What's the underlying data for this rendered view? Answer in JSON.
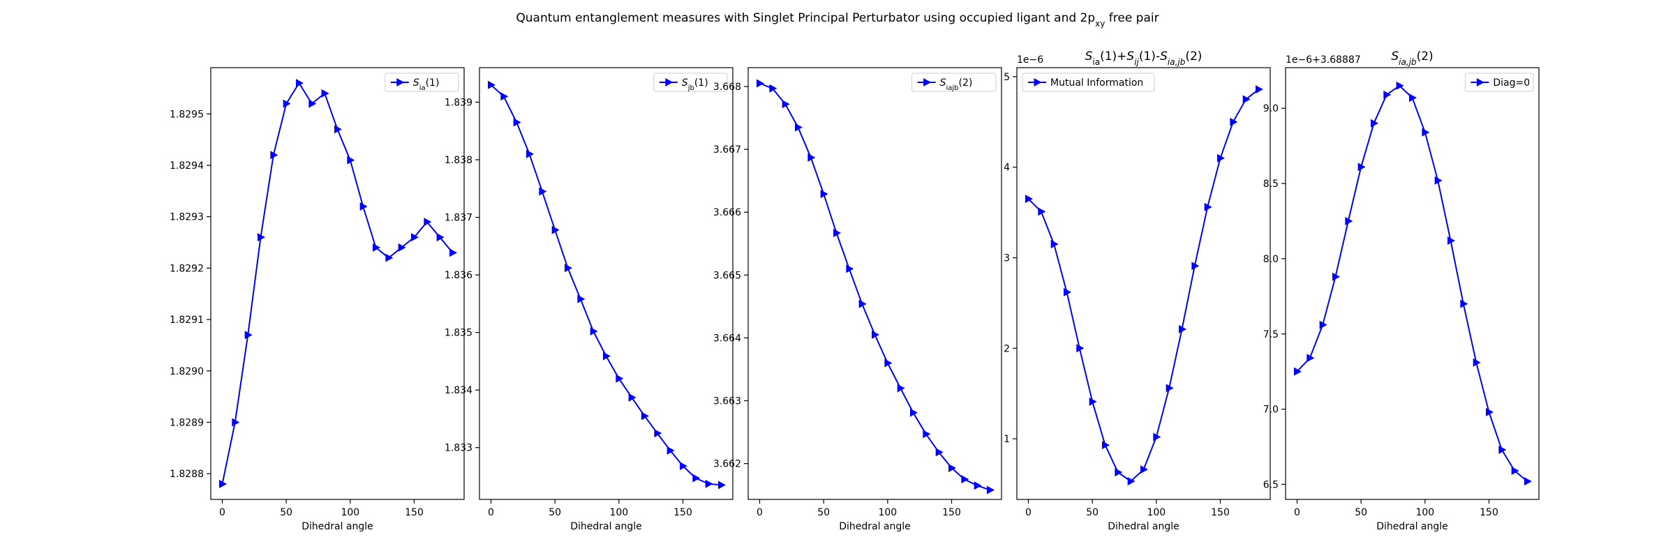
{
  "figure": {
    "title_parts": [
      {
        "t": "Quantum entanglement measures with Singlet Principal Perturbator using occupied ligant and 2p"
      },
      {
        "t": "xy",
        "sub": true
      },
      {
        "t": " free pair"
      }
    ]
  },
  "colors": {
    "series": "#0000ff",
    "axes": "#000000",
    "background": "#ffffff"
  },
  "chart_data": [
    {
      "type": "line",
      "marker": "triangle-right",
      "title": "",
      "xlabel": "Dihedral angle",
      "x": [
        0,
        10,
        20,
        30,
        40,
        50,
        60,
        70,
        80,
        90,
        100,
        110,
        120,
        130,
        140,
        150,
        160,
        170,
        180
      ],
      "xlim": [
        -9,
        189
      ],
      "xticks": [
        0,
        50,
        100,
        150
      ],
      "ylim": [
        1.82875,
        1.82959
      ],
      "yticks": [
        1.8288,
        1.8289,
        1.829,
        1.8291,
        1.8292,
        1.8293,
        1.8294,
        1.8295
      ],
      "ytick_labels": [
        "1.8288",
        "1.8289",
        "1.8290",
        "1.8291",
        "1.8292",
        "1.8293",
        "1.8294",
        "1.8295"
      ],
      "offset_text": "",
      "legend_loc": "upper right",
      "series": [
        {
          "name": "S_ia(1)",
          "name_parts": [
            {
              "t": "S",
              "i": true
            },
            {
              "t": "ia",
              "sub": true
            },
            {
              "t": "(1)"
            }
          ],
          "values": [
            1.82878,
            1.8289,
            1.82907,
            1.82926,
            1.82942,
            1.82952,
            1.82956,
            1.82952,
            1.82954,
            1.82947,
            1.82941,
            1.82932,
            1.82924,
            1.82922,
            1.82924,
            1.82926,
            1.82929,
            1.82926,
            1.82923
          ]
        }
      ]
    },
    {
      "type": "line",
      "marker": "triangle-right",
      "title": "",
      "xlabel": "Dihedral angle",
      "x": [
        0,
        10,
        20,
        30,
        40,
        50,
        60,
        70,
        80,
        90,
        100,
        110,
        120,
        130,
        140,
        150,
        160,
        170,
        180
      ],
      "xlim": [
        -9,
        189
      ],
      "xticks": [
        0,
        50,
        100,
        150
      ],
      "ylim": [
        1.8321,
        1.8396
      ],
      "yticks": [
        1.833,
        1.834,
        1.835,
        1.836,
        1.837,
        1.838,
        1.839
      ],
      "ytick_labels": [
        "1.833",
        "1.834",
        "1.835",
        "1.836",
        "1.837",
        "1.838",
        "1.839"
      ],
      "offset_text": "",
      "legend_loc": "upper right",
      "series": [
        {
          "name": "S_jb(1)",
          "name_parts": [
            {
              "t": "S",
              "i": true
            },
            {
              "t": "jb",
              "sub": true
            },
            {
              "t": "(1)"
            }
          ],
          "values": [
            1.8393,
            1.8391,
            1.83865,
            1.8381,
            1.83745,
            1.83678,
            1.83612,
            1.83558,
            1.83502,
            1.83459,
            1.8342,
            1.83387,
            1.83355,
            1.83325,
            1.83295,
            1.83268,
            1.83247,
            1.83237,
            1.83235
          ]
        }
      ]
    },
    {
      "type": "line",
      "marker": "triangle-right",
      "title": "",
      "xlabel": "Dihedral angle",
      "x": [
        0,
        10,
        20,
        30,
        40,
        50,
        60,
        70,
        80,
        90,
        100,
        110,
        120,
        130,
        140,
        150,
        160,
        170,
        180
      ],
      "xlim": [
        -9,
        189
      ],
      "xticks": [
        0,
        50,
        100,
        150
      ],
      "ylim": [
        3.66143,
        3.6683
      ],
      "yticks": [
        3.662,
        3.663,
        3.664,
        3.665,
        3.666,
        3.667,
        3.668
      ],
      "ytick_labels": [
        "3.662",
        "3.663",
        "3.664",
        "3.665",
        "3.666",
        "3.667",
        "3.668"
      ],
      "offset_text": "",
      "legend_loc": "upper right",
      "series": [
        {
          "name": "S_iajb(2)",
          "name_parts": [
            {
              "t": "S",
              "i": true
            },
            {
              "t": "iajb",
              "sub": true
            },
            {
              "t": "(2)"
            }
          ],
          "values": [
            3.66805,
            3.66797,
            3.66772,
            3.66735,
            3.66687,
            3.66629,
            3.66567,
            3.6651,
            3.66454,
            3.66405,
            3.6636,
            3.6632,
            3.66281,
            3.66247,
            3.66218,
            3.66193,
            3.66175,
            3.66165,
            3.66158
          ]
        }
      ]
    },
    {
      "type": "line",
      "marker": "triangle-right",
      "title": "S_ia(1)+S_ij(1)-S_ia,jb(2)",
      "title_parts": [
        {
          "t": "S",
          "i": true
        },
        {
          "t": "ia",
          "sub": true
        },
        {
          "t": "(1)+"
        },
        {
          "t": "S",
          "i": true
        },
        {
          "t": "ij",
          "sub": true,
          "i": true
        },
        {
          "t": "(1)-"
        },
        {
          "t": "S",
          "i": true
        },
        {
          "t": "ia,jb",
          "sub": true,
          "i": true
        },
        {
          "t": "(2)"
        }
      ],
      "xlabel": "Dihedral angle",
      "x": [
        0,
        10,
        20,
        30,
        40,
        50,
        60,
        70,
        80,
        90,
        100,
        110,
        120,
        130,
        140,
        150,
        160,
        170,
        180
      ],
      "xlim": [
        -9,
        189
      ],
      "xticks": [
        0,
        50,
        100,
        150
      ],
      "ylim": [
        0.33,
        5.1
      ],
      "yticks": [
        1,
        2,
        3,
        4,
        5
      ],
      "ytick_labels": [
        "1",
        "2",
        "3",
        "4",
        "5"
      ],
      "offset_text": "1e−6",
      "legend_loc": "upper left",
      "series": [
        {
          "name": "Mutual Information",
          "name_parts": [
            {
              "t": "Mutual Information"
            }
          ],
          "values": [
            3.65,
            3.51,
            3.15,
            2.62,
            2.0,
            1.41,
            0.93,
            0.63,
            0.53,
            0.66,
            1.02,
            1.56,
            2.21,
            2.91,
            3.56,
            4.1,
            4.5,
            4.75,
            4.86
          ]
        }
      ]
    },
    {
      "type": "line",
      "marker": "triangle-right",
      "title": "S_ia,jb(2)",
      "title_parts": [
        {
          "t": "S",
          "i": true
        },
        {
          "t": "ia,jb",
          "sub": true,
          "i": true
        },
        {
          "t": "(2)"
        }
      ],
      "xlabel": "Dihedral angle",
      "x": [
        0,
        10,
        20,
        30,
        40,
        50,
        60,
        70,
        80,
        90,
        100,
        110,
        120,
        130,
        140,
        150,
        160,
        170,
        180
      ],
      "xlim": [
        -9,
        189
      ],
      "xticks": [
        0,
        50,
        100,
        150
      ],
      "ylim": [
        6.4,
        9.27
      ],
      "yticks": [
        6.5,
        7.0,
        7.5,
        8.0,
        8.5,
        9.0
      ],
      "ytick_labels": [
        "6.5",
        "7.0",
        "7.5",
        "8.0",
        "8.5",
        "9.0"
      ],
      "offset_text": "1e−6+3.68887",
      "legend_loc": "upper right",
      "series": [
        {
          "name": "Diag=0",
          "name_parts": [
            {
              "t": "Diag=0"
            }
          ],
          "values": [
            7.25,
            7.34,
            7.56,
            7.88,
            8.25,
            8.61,
            8.9,
            9.09,
            9.15,
            9.07,
            8.84,
            8.52,
            8.12,
            7.7,
            7.31,
            6.98,
            6.73,
            6.59,
            6.52
          ]
        }
      ]
    }
  ]
}
